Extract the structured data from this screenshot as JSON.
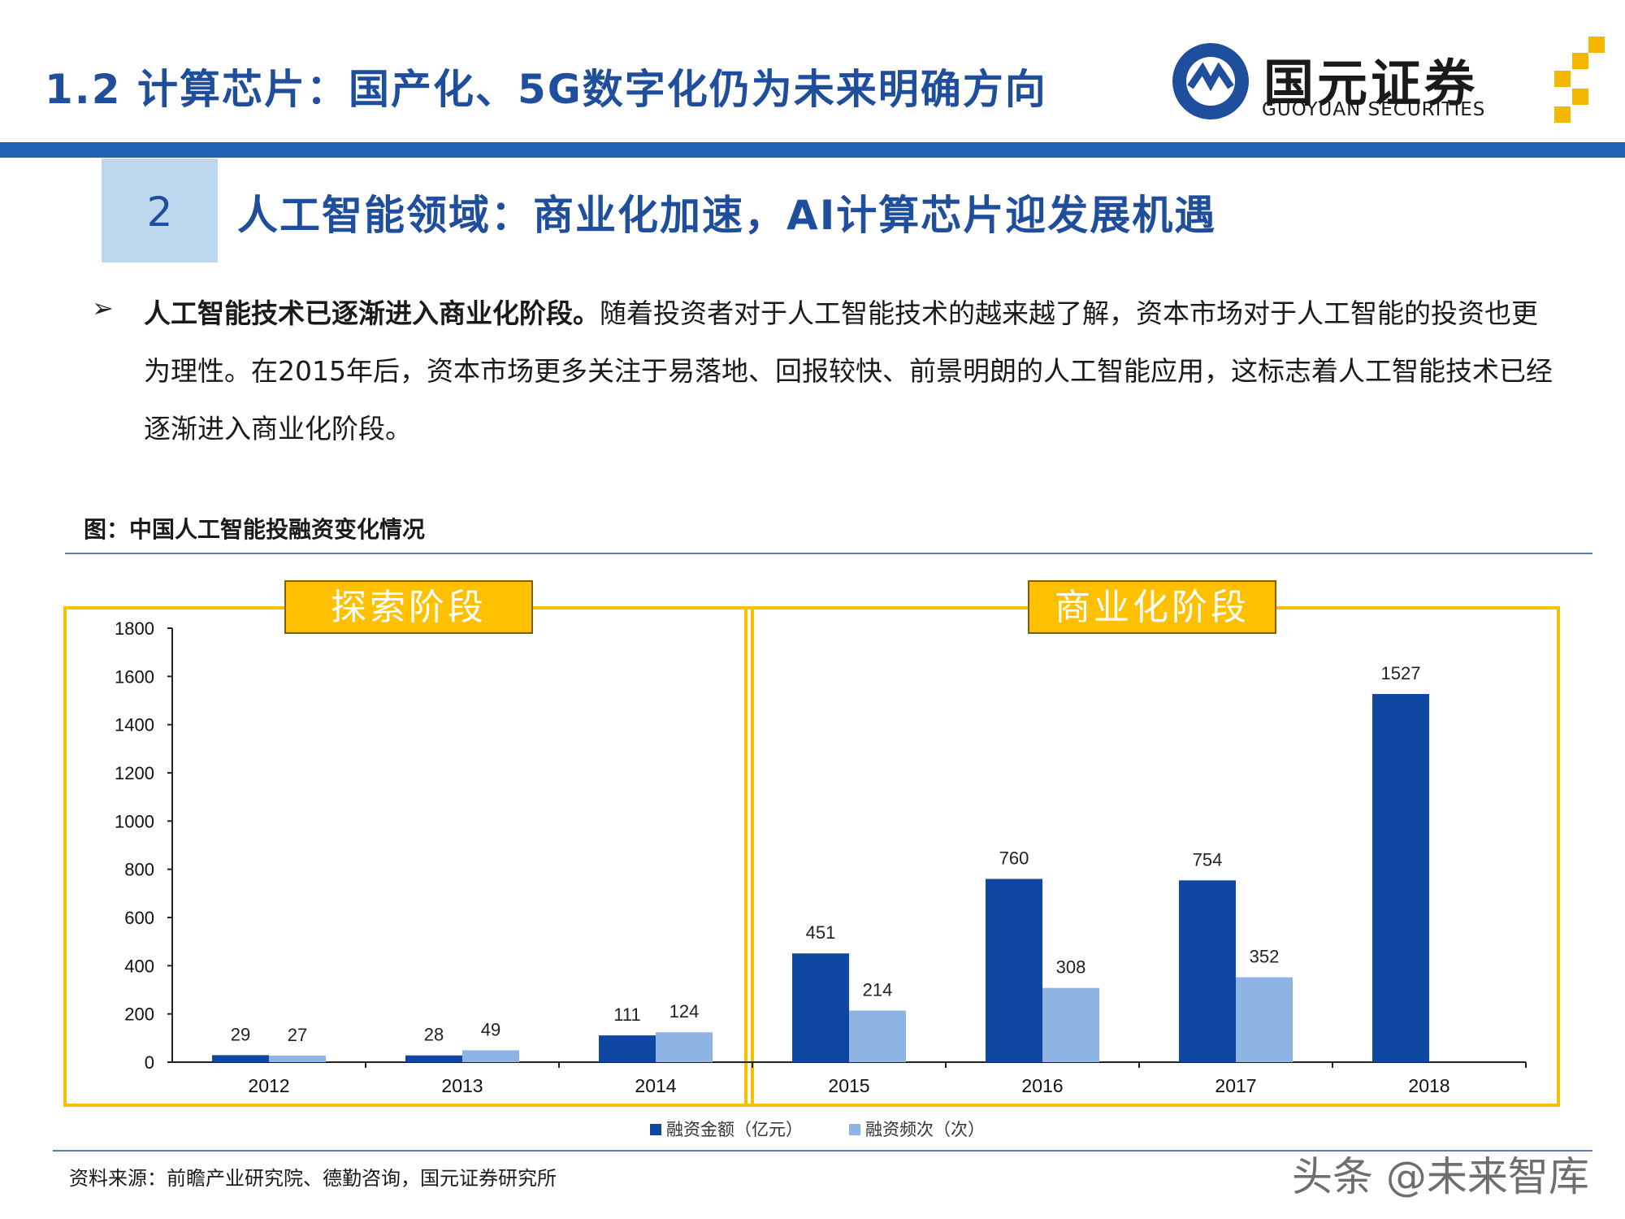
{
  "header": {
    "title": "1.2 计算芯片：国产化、5G数字化仍为未来明确方向",
    "logo_cn": "国元证券",
    "logo_en": "GUOYUAN SECURITIES"
  },
  "section": {
    "number": "2",
    "title": "人工智能领域：商业化加速，AI计算芯片迎发展机遇"
  },
  "bullet_symbol": "➢",
  "paragraph": {
    "bold": "人工智能技术已逐渐进入商业化阶段。",
    "text": "随着投资者对于人工智能技术的越来越了解，资本市场对于人工智能的投资也更为理性。在2015年后，资本市场更多关注于易落地、回报较快、前景明朗的人工智能应用，这标志着人工智能技术已经逐渐进入商业化阶段。"
  },
  "figure_caption": "图：中国人工智能投融资变化情况",
  "source": "资料来源：前瞻产业研究院、德勤咨询，国元证券研究所",
  "watermark": "头条 @未来智库",
  "colors": {
    "amount": "#0d47a1",
    "count": "#8db4e2",
    "stage_border": "#f5c000",
    "stage_fill": "#ffc000",
    "brand": "#1f4e9c"
  },
  "chart_data": {
    "type": "bar",
    "categories": [
      "2012",
      "2013",
      "2014",
      "2015",
      "2016",
      "2017",
      "2018"
    ],
    "series": [
      {
        "name": "融资金额（亿元）",
        "values": [
          29,
          28,
          111,
          451,
          760,
          754,
          1527
        ]
      },
      {
        "name": "融资频次（次）",
        "values": [
          27,
          49,
          124,
          214,
          308,
          352,
          null
        ]
      }
    ],
    "ylim": [
      0,
      1800
    ],
    "yticks": [
      0,
      200,
      400,
      600,
      800,
      1000,
      1200,
      1400,
      1600,
      1800
    ],
    "legend_position": "bottom",
    "grid": false,
    "annotations": [
      {
        "label": "探索阶段",
        "categories": [
          "2012",
          "2013",
          "2014"
        ]
      },
      {
        "label": "商业化阶段",
        "categories": [
          "2015",
          "2016",
          "2017",
          "2018"
        ]
      }
    ]
  }
}
